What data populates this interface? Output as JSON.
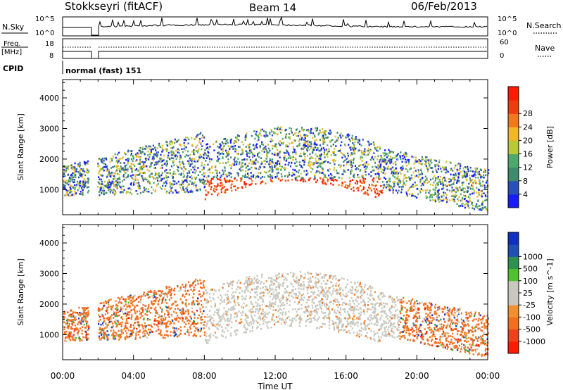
{
  "header": {
    "station": "Stokkseyri (fitACF)",
    "beam": "Beam 14",
    "date": "06/Feb/2013"
  },
  "param_panels": {
    "nsky_label": "N.Sky",
    "nsky_ticks": [
      "10^5",
      "10^0"
    ],
    "nsearch_label": "N.Search",
    "nsearch_ticks": [
      "10^5",
      "10^0"
    ],
    "freq_label_top": "Freq.",
    "freq_label_unit": "[MHz]",
    "freq_ticks": [
      "18",
      "8"
    ],
    "nave_label": "Nave",
    "nave_ticks": [
      "60",
      "0"
    ],
    "cpid_label": "CPID",
    "cpid_value": "normal (fast) 151"
  },
  "colors": {
    "power_scale": [
      "#1a1aff",
      "#2a50b8",
      "#3f8a6a",
      "#4fa86b",
      "#b8c83a",
      "#f0b828",
      "#f07820",
      "#f03c10",
      "#ff1a00"
    ],
    "velocity_scale": [
      "#ff1a00",
      "#f04020",
      "#f07020",
      "#f09030",
      "#c8c8c0",
      "#c8c8c0",
      "#50c030",
      "#309050",
      "#2050b0",
      "#1030c0"
    ]
  },
  "chart_data": [
    {
      "type": "heatmap",
      "title": "",
      "xlabel": "",
      "ylabel": "Slant Range [km]",
      "x_ticks": [
        "00:00",
        "04:00",
        "08:00",
        "12:00",
        "16:00",
        "20:00",
        "00:00"
      ],
      "y_ticks": [
        "1000",
        "2000",
        "3000",
        "4000"
      ],
      "xlim_hours": [
        0,
        24
      ],
      "ylim_km": [
        180,
        4600
      ],
      "colorbar": {
        "label": "Power [dB]",
        "ticks": [
          "4",
          "8",
          "12",
          "16",
          "20",
          "24",
          "28"
        ],
        "range": [
          0,
          30
        ]
      },
      "grid": false
    },
    {
      "type": "heatmap",
      "title": "",
      "xlabel": "Time UT",
      "ylabel": "Slant Range [km]",
      "x_ticks": [
        "00:00",
        "04:00",
        "08:00",
        "12:00",
        "16:00",
        "20:00",
        "00:00"
      ],
      "y_ticks": [
        "1000",
        "2000",
        "3000",
        "4000"
      ],
      "xlim_hours": [
        0,
        24
      ],
      "ylim_km": [
        180,
        4600
      ],
      "colorbar": {
        "label": "Velocity [m s^-1]",
        "ticks": [
          "1000",
          "500",
          "100",
          "25",
          "-25",
          "-100",
          "-500",
          "-1000"
        ],
        "range": [
          -1000,
          1000
        ]
      },
      "grid": false
    }
  ]
}
